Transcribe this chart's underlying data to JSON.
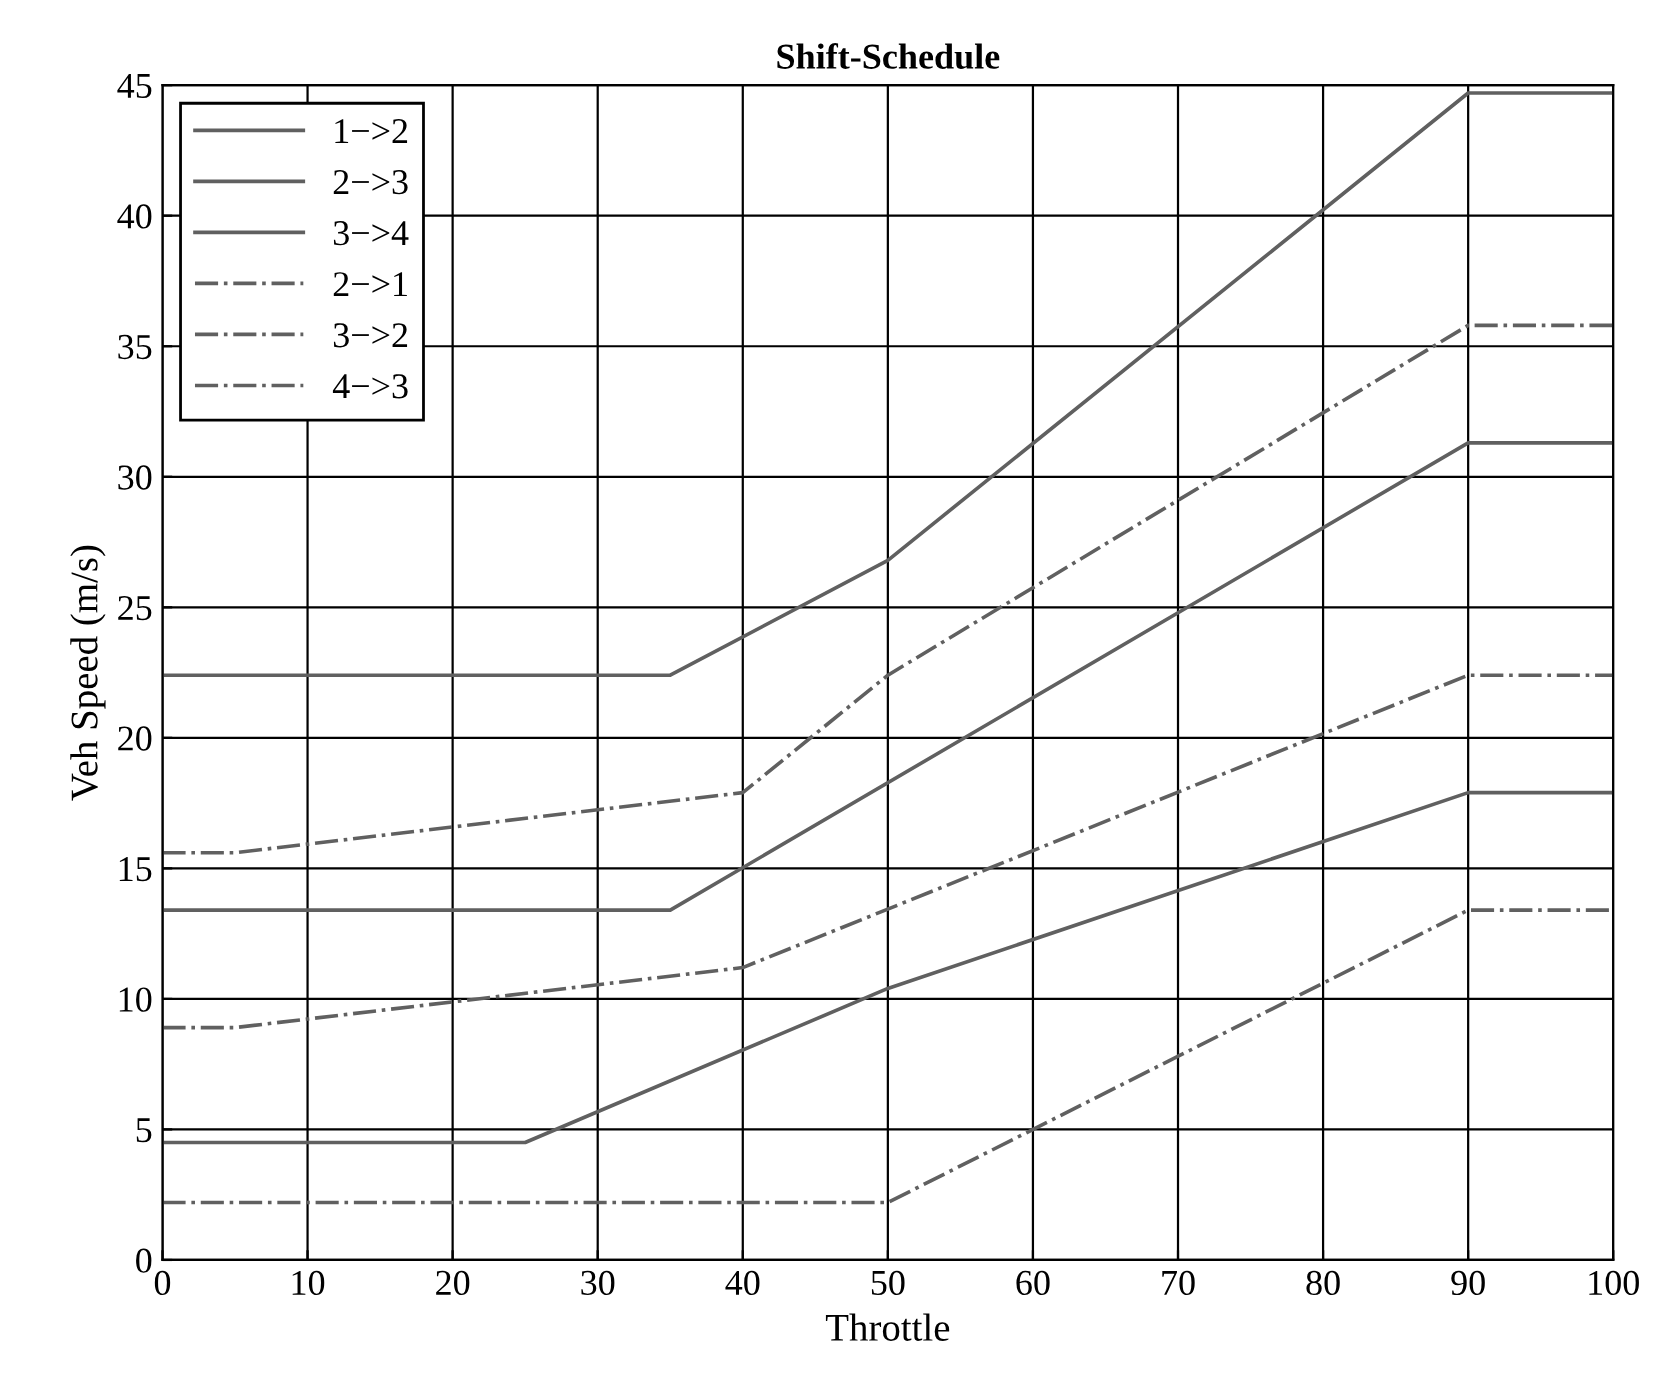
{
  "chart_data": {
    "type": "line",
    "title": "Shift-Schedule",
    "xlabel": "Throttle",
    "ylabel": "Veh Speed (m/s)",
    "xlim": [
      0,
      100
    ],
    "ylim": [
      0,
      45
    ],
    "xticks": [
      0,
      10,
      20,
      30,
      40,
      50,
      60,
      70,
      80,
      90,
      100
    ],
    "yticks": [
      0,
      5,
      10,
      15,
      20,
      25,
      30,
      35,
      40,
      45
    ],
    "grid": true,
    "legend": "top left",
    "marker": "none",
    "series": [
      {
        "name": "1−>2",
        "color": "#606060",
        "line_style": "solid",
        "x": [
          0,
          25,
          50,
          90,
          100
        ],
        "values": [
          4.5,
          4.5,
          10.4,
          17.9,
          17.9
        ]
      },
      {
        "name": "2−>3",
        "color": "#606060",
        "line_style": "solid",
        "x": [
          0,
          35,
          90,
          100
        ],
        "values": [
          13.4,
          13.4,
          31.3,
          31.3
        ]
      },
      {
        "name": "3−>4",
        "color": "#606060",
        "line_style": "solid",
        "x": [
          0,
          35,
          50,
          90,
          100
        ],
        "values": [
          22.4,
          22.4,
          26.8,
          44.7,
          44.7
        ]
      },
      {
        "name": "2−>1",
        "color": "#606060",
        "line_style": "dashdot",
        "x": [
          0,
          50,
          90,
          100
        ],
        "values": [
          2.2,
          2.2,
          13.4,
          13.4
        ]
      },
      {
        "name": "3−>2",
        "color": "#606060",
        "line_style": "dashdot",
        "x": [
          0,
          5,
          40,
          90,
          100
        ],
        "values": [
          8.9,
          8.9,
          11.2,
          22.4,
          22.4
        ]
      },
      {
        "name": "4−>3",
        "color": "#606060",
        "line_style": "dashdot",
        "x": [
          0,
          5,
          40,
          50,
          90,
          100
        ],
        "values": [
          15.6,
          15.6,
          17.9,
          22.4,
          35.8,
          35.8
        ]
      }
    ]
  }
}
